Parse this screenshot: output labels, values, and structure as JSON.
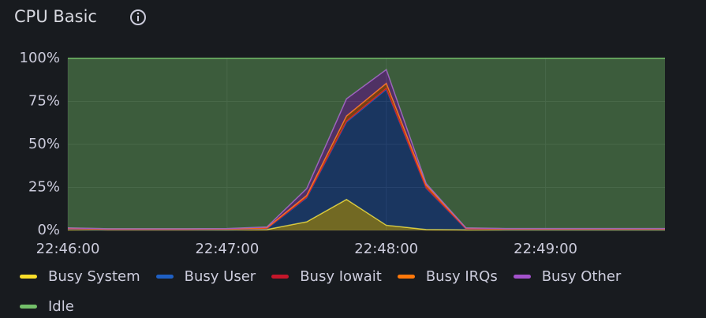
{
  "chart_data": {
    "type": "stacked-area",
    "title": "CPU Basic",
    "x": [
      "22:46:00",
      "22:46:15",
      "22:46:30",
      "22:46:45",
      "22:47:00",
      "22:47:15",
      "22:47:30",
      "22:47:45",
      "22:48:00",
      "22:48:15",
      "22:48:30",
      "22:48:45",
      "22:49:00",
      "22:49:15",
      "22:49:30",
      "22:49:45"
    ],
    "xlim": [
      "22:46:00",
      "22:49:45"
    ],
    "xticks": [
      "22:46:00",
      "22:47:00",
      "22:48:00",
      "22:49:00"
    ],
    "ylim": [
      0,
      100
    ],
    "yticks": [
      {
        "value": 0,
        "label": "0%"
      },
      {
        "value": 25,
        "label": "25%"
      },
      {
        "value": 50,
        "label": "50%"
      },
      {
        "value": 75,
        "label": "75%"
      },
      {
        "value": 100,
        "label": "100%"
      }
    ],
    "grid": true,
    "series": [
      {
        "name": "Busy System",
        "color": "#fade2a",
        "values": [
          0.5,
          0.3,
          0.3,
          0.3,
          0.3,
          0.5,
          5,
          18,
          3,
          0.5,
          0.3,
          0.3,
          0.3,
          0.3,
          0.3,
          0.3
        ]
      },
      {
        "name": "Busy User",
        "color": "#1f60c4",
        "values": [
          0.3,
          0.2,
          0.2,
          0.2,
          0.3,
          0.5,
          14,
          45,
          79,
          24,
          0.5,
          0.3,
          0.3,
          0.3,
          0.3,
          0.3
        ]
      },
      {
        "name": "Busy Iowait",
        "color": "#c4162a",
        "values": [
          0.3,
          0.2,
          0.2,
          0.2,
          0.2,
          0.2,
          0.3,
          0.5,
          0.5,
          0.3,
          0.2,
          0.2,
          0.2,
          0.2,
          0.2,
          0.2
        ]
      },
      {
        "name": "Busy IRQs",
        "color": "#ff780a",
        "values": [
          0.2,
          0.2,
          0.2,
          0.2,
          0.2,
          0.3,
          1,
          3,
          3,
          1.5,
          0.3,
          0.2,
          0.2,
          0.2,
          0.2,
          0.2
        ]
      },
      {
        "name": "Busy Other",
        "color": "#a352cc",
        "values": [
          0.2,
          0.1,
          0.1,
          0.1,
          0.1,
          0.5,
          4,
          10,
          8,
          1,
          0.2,
          0.1,
          0.1,
          0.1,
          0.1,
          0.1
        ]
      },
      {
        "name": "Idle",
        "color": "#73bf69",
        "values": [
          98.5,
          99,
          99,
          99,
          98.9,
          98,
          75.7,
          23.5,
          6.5,
          72.7,
          98.5,
          98.9,
          98.9,
          98.9,
          98.9,
          98.9
        ]
      }
    ]
  }
}
